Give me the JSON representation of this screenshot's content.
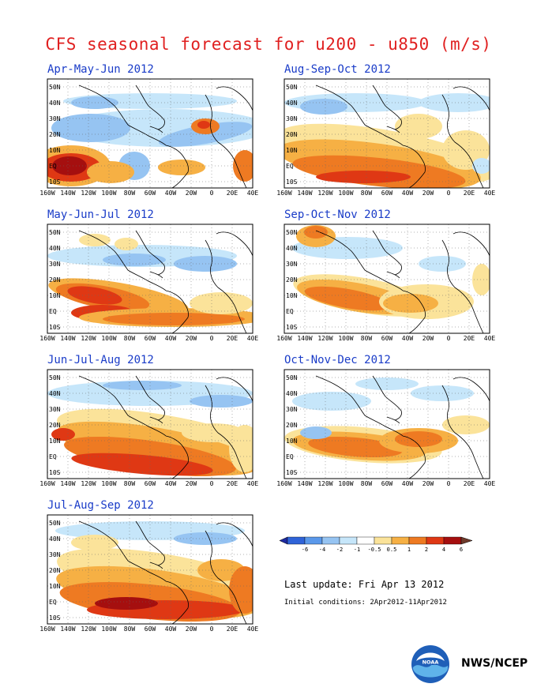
{
  "title": "CFS seasonal forecast for u200 - u850 (m/s)",
  "panels": [
    {
      "label": "Apr-May-Jun 2012",
      "pattern": 0
    },
    {
      "label": "Aug-Sep-Oct 2012",
      "pattern": 4
    },
    {
      "label": "May-Jun-Jul 2012",
      "pattern": 1
    },
    {
      "label": "Sep-Oct-Nov 2012",
      "pattern": 5
    },
    {
      "label": "Jun-Jul-Aug 2012",
      "pattern": 2
    },
    {
      "label": "Oct-Nov-Dec 2012",
      "pattern": 6
    },
    {
      "label": "Jul-Aug-Sep 2012",
      "pattern": 3
    }
  ],
  "lat_labels": [
    "50N",
    "40N",
    "30N",
    "20N",
    "10N",
    "EQ",
    "10S"
  ],
  "lon_labels": [
    "160W",
    "140W",
    "120W",
    "100W",
    "80W",
    "60W",
    "40W",
    "20W",
    "0",
    "20E",
    "40E"
  ],
  "colorbar": {
    "tick_labels": [
      "-6",
      "-4",
      "-2",
      "-1",
      "-0.5",
      "0.5",
      "1",
      "2",
      "4",
      "6"
    ],
    "colors": [
      "#1e2aa0",
      "#2f63d8",
      "#5a98ea",
      "#96c4f2",
      "#c6e6fa",
      "#ffffff",
      "#fbe39a",
      "#f6b044",
      "#ee7a22",
      "#df3814",
      "#a50f0f",
      "#6e3a2a"
    ]
  },
  "last_update": "Last update: Fri Apr 13 2012",
  "initial_conditions": "Initial conditions: 2Apr2012-11Apr2012",
  "org_label": "NWS/NCEP",
  "logo_text": "NOAA"
}
